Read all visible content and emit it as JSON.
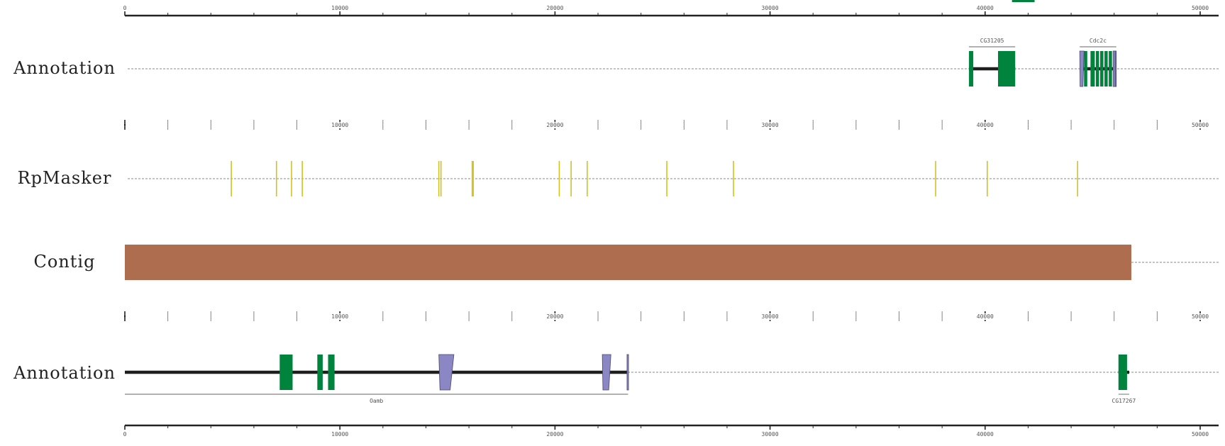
{
  "browser": {
    "sequence_length": 50000,
    "colors": {
      "exon": "#00843d",
      "intron": "#1f1f1f",
      "repeat": "#d4c21f",
      "contig": "#af6d4f",
      "utr": "#8b86c4",
      "utr_stroke": "#4a4a6a",
      "axis": "#222222",
      "dotted": "#888888"
    },
    "top_ruler": {
      "labels": [
        "0",
        "10000",
        "20000",
        "30000",
        "40000",
        "50000"
      ],
      "positions": [
        0,
        10000,
        20000,
        30000,
        40000,
        50000
      ],
      "has_overflow_exon": true,
      "overflow_exon": [
        41250,
        42300
      ]
    },
    "tracks": [
      {
        "label": "Annotation",
        "type": "annotation",
        "genes": [
          {
            "name": "CG31205",
            "label_position": "above",
            "span": [
              39250,
              41400
            ],
            "exons": [
              [
                39250,
                39450
              ],
              [
                40600,
                41400
              ]
            ],
            "utrs": []
          },
          {
            "name": "Cdc2c",
            "label_position": "above",
            "span": [
              44400,
              46100
            ],
            "exons": [
              [
                44600,
                44750
              ],
              [
                44900,
                45100
              ],
              [
                45150,
                45300
              ],
              [
                45350,
                45500
              ],
              [
                45550,
                45700
              ],
              [
                45750,
                45900
              ]
            ],
            "utrs": [
              [
                44400,
                44600
              ],
              [
                45950,
                46050
              ],
              [
                46050,
                46100
              ]
            ]
          }
        ]
      },
      {
        "label": "RpMasker",
        "type": "repeats",
        "ruler_labels": [
          "0",
          "10000",
          "20000",
          "30000",
          "40000",
          "50000"
        ],
        "repeats": [
          4950,
          7050,
          7750,
          8250,
          14600,
          14700,
          16150,
          16200,
          20200,
          20750,
          21500,
          25200,
          28300,
          37700,
          40100,
          44300
        ]
      },
      {
        "label": "Contig",
        "type": "contig",
        "span": [
          0,
          46800
        ]
      },
      {
        "label": "Annotation",
        "type": "annotation",
        "ruler_labels": [
          "0",
          "10000",
          "20000",
          "30000",
          "40000",
          "50000"
        ],
        "genes": [
          {
            "name": "Oamb",
            "label_position": "below",
            "span": [
              0,
              23400
            ],
            "exons": [
              [
                7200,
                7800
              ],
              [
                8950,
                9200
              ],
              [
                9450,
                9750
              ]
            ],
            "utrs": [
              [
                14600,
                15300
              ],
              [
                22200,
                22600
              ],
              [
                23350,
                23420
              ]
            ]
          },
          {
            "name": "CG17267",
            "label_position": "below",
            "span": [
              46200,
              46700
            ],
            "exons": [
              [
                46200,
                46600
              ]
            ],
            "utrs": []
          }
        ]
      }
    ],
    "bottom_ruler": {
      "labels": [
        "0",
        "10000",
        "20000",
        "30000",
        "40000",
        "50000"
      ],
      "positions": [
        0,
        10000,
        20000,
        30000,
        40000,
        50000
      ]
    }
  }
}
